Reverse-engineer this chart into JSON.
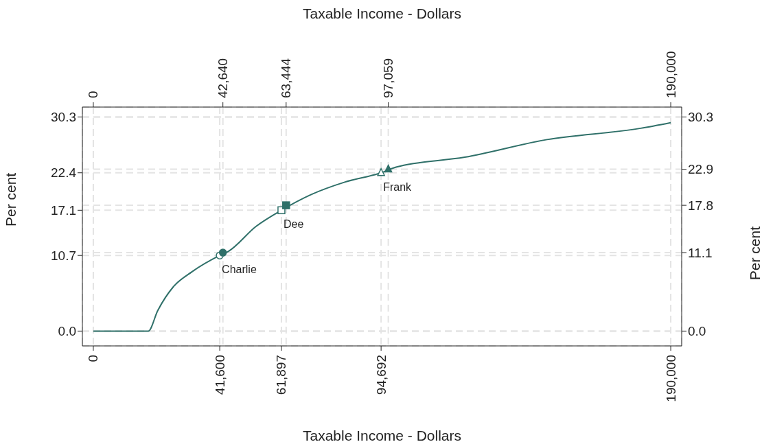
{
  "chart_data": {
    "type": "line",
    "xlabel": "Taxable Income - Dollars",
    "x2label": "Taxable Income - Dollars",
    "ylabel": "Per cent",
    "y2label": "Per cent",
    "xlim": [
      -3600,
      193600
    ],
    "xticks": [
      0,
      {
        "value": 41600,
        "label": "41,600"
      },
      {
        "value": 61897,
        "label": "61,897"
      },
      {
        "value": 94692,
        "label": "94,692"
      },
      {
        "value": 190000,
        "label": "190,000"
      }
    ],
    "x2lim": [
      -3600,
      193600
    ],
    "x2ticks": [
      0,
      {
        "value": 42640,
        "label": "42,640"
      },
      {
        "value": 63444,
        "label": "63,444"
      },
      {
        "value": 97059,
        "label": "97,059"
      },
      {
        "value": 190000,
        "label": "190,000"
      }
    ],
    "ylim": [
      -2.1,
      31.7
    ],
    "yticks": [
      {
        "value": 0,
        "label": "0.0"
      },
      10.7,
      17.1,
      22.4,
      30.3
    ],
    "y2lim": [
      -2.1,
      31.7
    ],
    "y2ticks": [
      {
        "value": 0,
        "label": "0.0"
      },
      11.1,
      17.8,
      22.9,
      30.3
    ],
    "grid": true,
    "series": [
      {
        "marker": "none",
        "color": "#2f7069",
        "x": [
          0,
          18100,
          21200,
          26400,
          32500,
          41600,
          44500,
          53500,
          61897,
          71600,
          82900,
          94692,
          99600,
          122200,
          149300,
          180100,
          190000
        ],
        "values": [
          0,
          0,
          2.9,
          6.3,
          8.4,
          10.7,
          11.3,
          14.8,
          17.1,
          19.3,
          21.1,
          22.4,
          23.2,
          24.6,
          27.1,
          28.7,
          29.5
        ]
      },
      {
        "type": "scatter",
        "marker": "circle",
        "color": "#2f7069",
        "x": [
          41600
        ],
        "values": [
          10.7
        ]
      },
      {
        "type": "scatter",
        "marker": "square",
        "color": "#2f7069",
        "x": [
          61897
        ],
        "values": [
          17.1
        ]
      },
      {
        "type": "scatter",
        "marker": "triangle",
        "color": "#2f7069",
        "x": [
          94692
        ],
        "values": [
          22.4
        ]
      },
      {
        "type": "scatter",
        "marker": "circle",
        "color": "#2f7069",
        "axis": "y2",
        "x": [
          42640
        ],
        "values": [
          11.1
        ]
      },
      {
        "type": "scatter",
        "marker": "square",
        "color": "#2f7069",
        "axis": "y2",
        "x": [
          63444
        ],
        "values": [
          17.8
        ]
      },
      {
        "type": "scatter",
        "marker": "triangle",
        "color": "#2f7069",
        "axis": "y2",
        "x": [
          97059
        ],
        "values": [
          22.9
        ]
      }
    ],
    "annotations": [
      {
        "text": "Charlie",
        "x": 41600,
        "y": 10.7
      },
      {
        "text": "Dee",
        "x": 61897,
        "y": 17.1
      },
      {
        "text": "Frank",
        "x": 94692,
        "y": 22.4
      }
    ]
  }
}
